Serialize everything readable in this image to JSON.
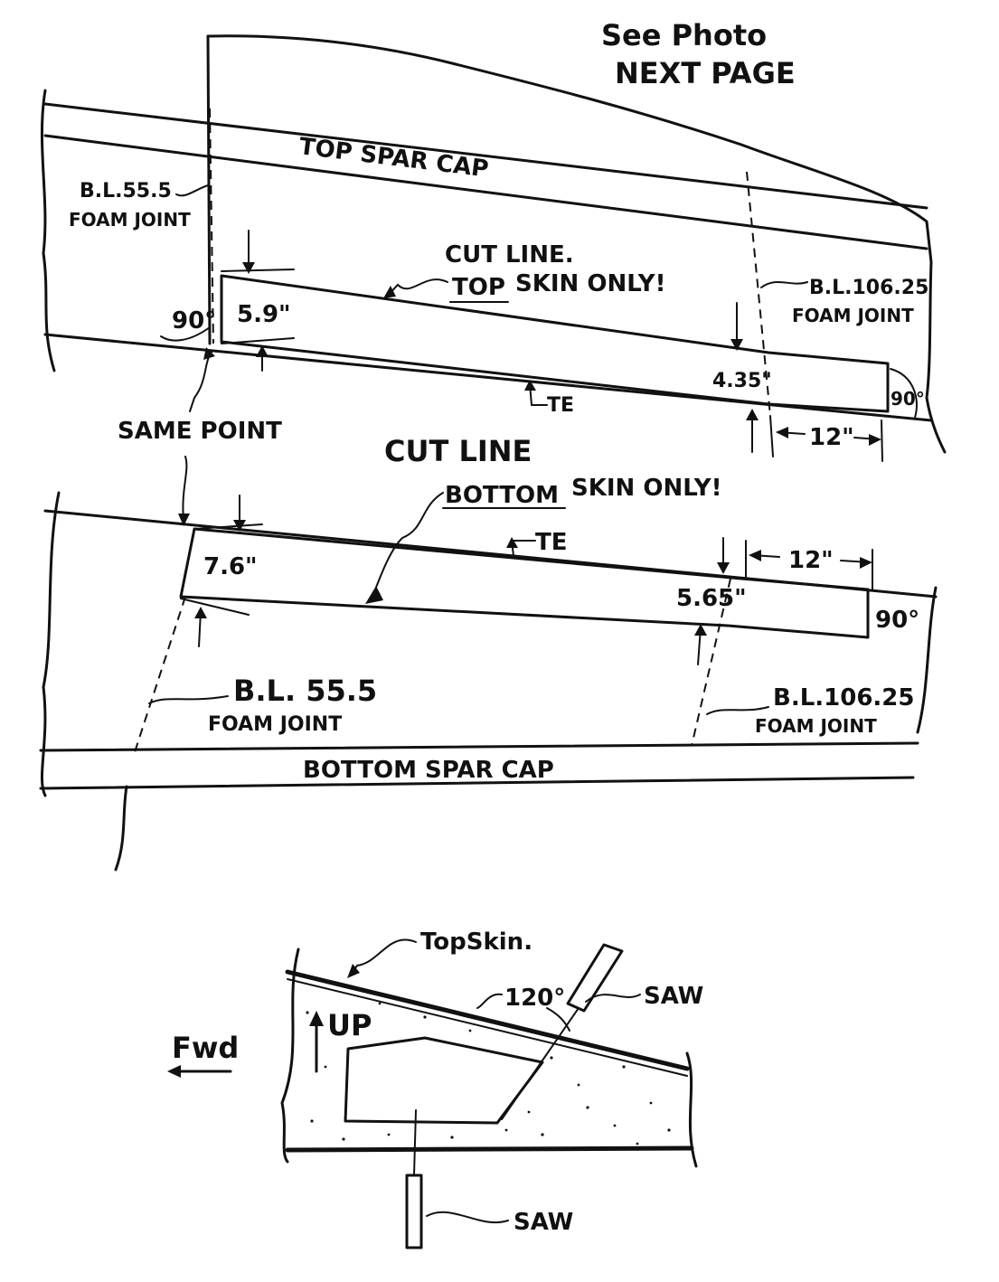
{
  "header": {
    "note_line1": "See Photo",
    "note_line2": "NEXT PAGE"
  },
  "top_view": {
    "spar_cap_label": "TOP SPAR CAP",
    "left_joint_line1": "B.L.55.5",
    "left_joint_line2": "FOAM JOINT",
    "right_joint_line1": "B.L.106.25",
    "right_joint_line2": "FOAM JOINT",
    "cut_line_title": "CUT LINE.",
    "cut_line_emphasis": "TOP",
    "cut_line_rest": "SKIN ONLY!",
    "angle_left": "90°",
    "angle_right": "90°",
    "dim_left": "5.9\"",
    "dim_right": "4.35\"",
    "dim_extension": "12\"",
    "te_label": "TE"
  },
  "same_point_label": "SAME POINT",
  "bottom_view": {
    "cut_line_title": "CUT LINE",
    "cut_line_emphasis": "BOTTOM",
    "cut_line_rest": "SKIN ONLY!",
    "dim_left": "7.6\"",
    "dim_right": "5.65\"",
    "dim_extension": "12\"",
    "angle_right": "90°",
    "te_label": "TE",
    "left_joint_line1": "B.L. 55.5",
    "left_joint_line2": "FOAM JOINT",
    "right_joint_line1": "B.L.106.25",
    "right_joint_line2": "FOAM JOINT",
    "spar_cap_label": "BOTTOM SPAR CAP"
  },
  "section_view": {
    "top_skin_label": "TopSkin.",
    "angle_label": "120°",
    "saw_upper_label": "SAW",
    "saw_lower_label": "SAW",
    "up_label": "UP",
    "fwd_label": "Fwd"
  }
}
